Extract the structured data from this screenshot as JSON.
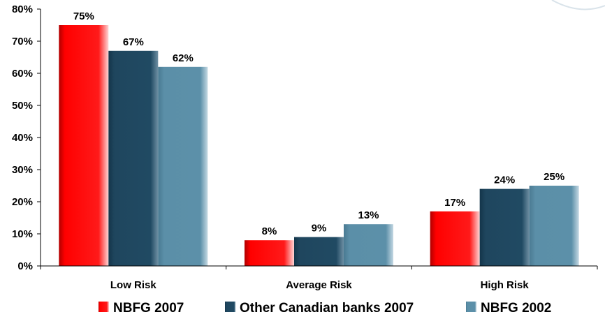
{
  "chart_data": {
    "type": "bar",
    "categories": [
      "Low Risk",
      "Average Risk",
      "High Risk"
    ],
    "series": [
      {
        "name": "NBFG 2007",
        "values": [
          75,
          8,
          17
        ],
        "labels": [
          "75%",
          "8%",
          "17%"
        ],
        "color": "#ff0000"
      },
      {
        "name": "Other Canadian banks 2007",
        "values": [
          67,
          9,
          24
        ],
        "labels": [
          "67%",
          "9%",
          "24%"
        ],
        "color": "#1f465e"
      },
      {
        "name": "NBFG 2002",
        "values": [
          62,
          13,
          25
        ],
        "labels": [
          "62%",
          "13%",
          "25%"
        ],
        "color": "#5b8fa8"
      }
    ],
    "y_ticks": [
      "0%",
      "10%",
      "20%",
      "30%",
      "40%",
      "50%",
      "60%",
      "70%",
      "80%"
    ],
    "ylim": [
      0,
      80
    ],
    "grid": false,
    "legend_position": "bottom"
  }
}
